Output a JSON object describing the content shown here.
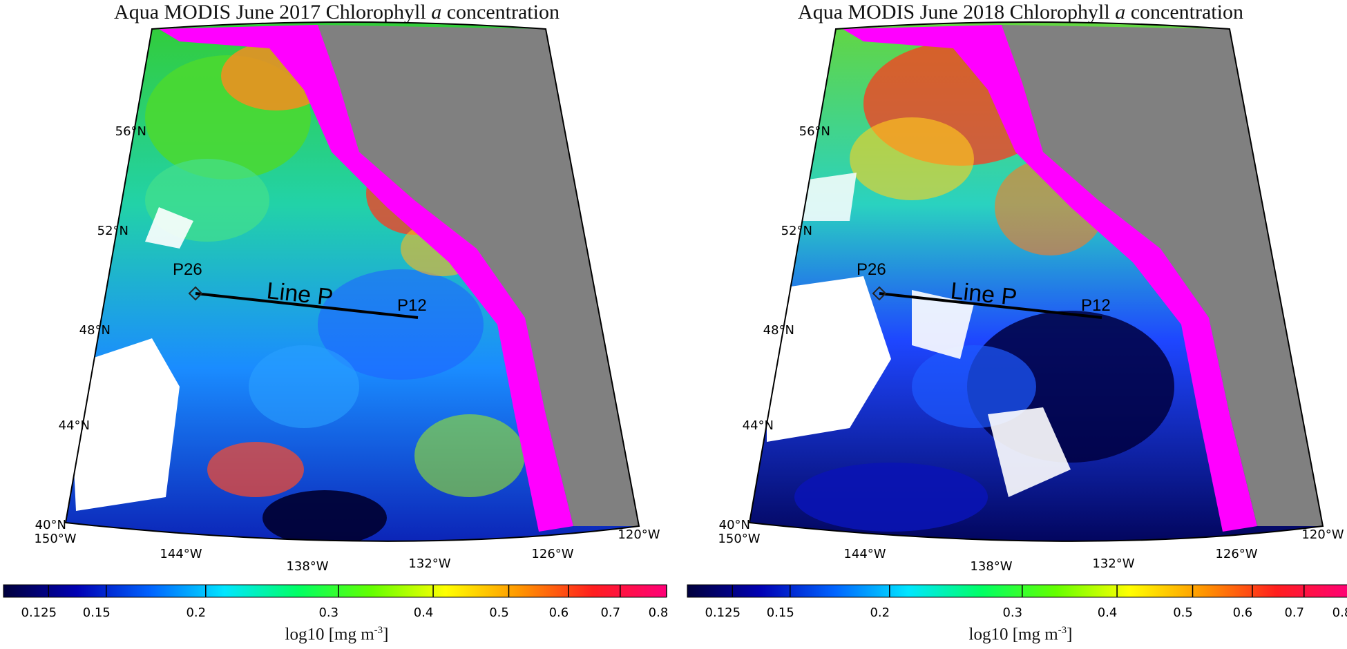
{
  "panels": [
    {
      "title_prefix": "Aqua MODIS June 2017 Chlorophyll",
      "title_italic": "a",
      "title_suffix": "concentration",
      "lat_labels": [
        "56°N",
        "52°N",
        "48°N",
        "44°N",
        "40°N"
      ],
      "lon_labels": [
        "150°W",
        "144°W",
        "138°W",
        "132°W",
        "126°W",
        "120°W"
      ],
      "line_label": "Line P",
      "station_start": "P26",
      "station_end": "P12"
    },
    {
      "title_prefix": "Aqua MODIS June 2018 Chlorophyll",
      "title_italic": "a",
      "title_suffix": "concentration",
      "lat_labels": [
        "56°N",
        "52°N",
        "48°N",
        "44°N",
        "40°N"
      ],
      "lon_labels": [
        "150°W",
        "144°W",
        "138°W",
        "132°W",
        "126°W",
        "120°W"
      ],
      "line_label": "Line P",
      "station_start": "P26",
      "station_end": "P12"
    }
  ],
  "colorbar": {
    "ticks": [
      "0.125",
      "0.15",
      "0.2",
      "0.3",
      "0.4",
      "0.5",
      "0.6",
      "0.7",
      "0.8"
    ],
    "label": "log10 [mg m",
    "label_sup": "-3",
    "label_end": "]",
    "colors": [
      "#00003c",
      "#0000b4",
      "#0064ff",
      "#00e6ff",
      "#00ff64",
      "#64ff00",
      "#ffff00",
      "#ff9600",
      "#ff1e1e",
      "#ff0078"
    ]
  },
  "map_colors": {
    "land": "#808080",
    "coastal_high": "#ff00ff",
    "no_data": "#ffffff"
  }
}
